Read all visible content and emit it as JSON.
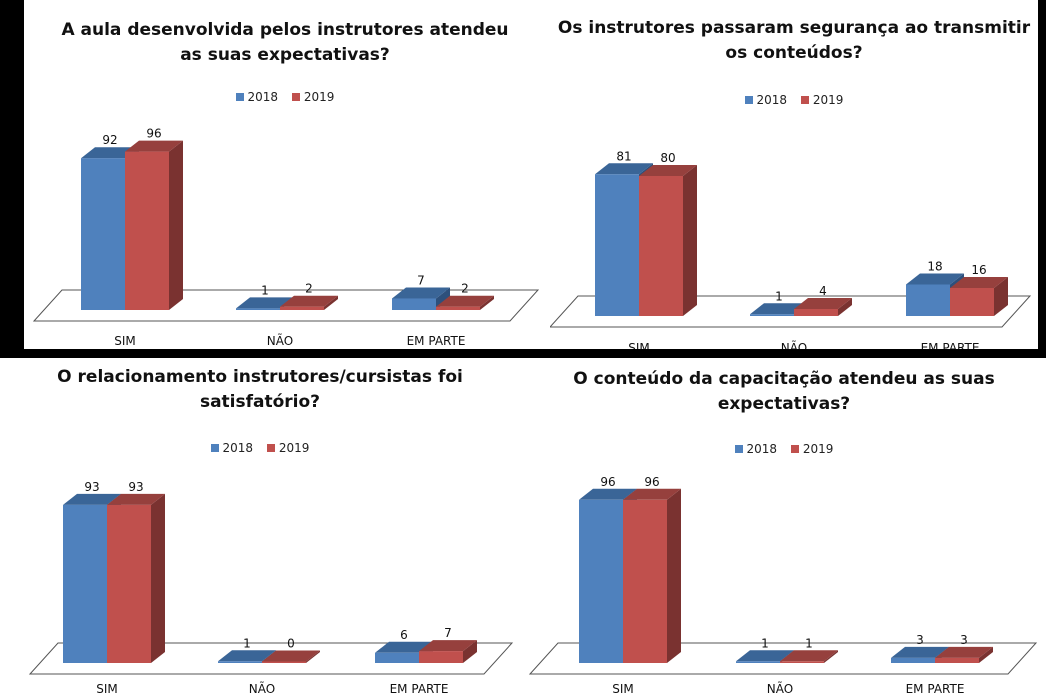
{
  "legend": {
    "series_a": "2018",
    "series_b": "2019"
  },
  "colors": {
    "s2018": {
      "front": "#4f81bd",
      "top": "#3a6597",
      "side": "#2d507c"
    },
    "s2019": {
      "front": "#c0504d",
      "top": "#96403d",
      "side": "#7a3230"
    },
    "floor_stroke": "#555555"
  },
  "chart_data": [
    {
      "type": "bar",
      "title": "A aula desenvolvida pelos instrutores atendeu\nas suas expectativas?",
      "categories": [
        "SIM",
        "NÃO",
        "EM PARTE"
      ],
      "series": [
        {
          "name": "2018",
          "values": [
            92,
            1,
            7
          ]
        },
        {
          "name": "2019",
          "values": [
            96,
            2,
            2
          ]
        }
      ],
      "ylim": [
        0,
        100
      ],
      "grid": false,
      "legend_position": "top"
    },
    {
      "type": "bar",
      "title": "Os instrutores passaram segurança ao transmitir\nos conteúdos?",
      "categories": [
        "SIM",
        "NÃO",
        "EM PARTE"
      ],
      "series": [
        {
          "name": "2018",
          "values": [
            81,
            1,
            18
          ]
        },
        {
          "name": "2019",
          "values": [
            80,
            4,
            16
          ]
        }
      ],
      "ylim": [
        0,
        100
      ],
      "grid": false,
      "legend_position": "top"
    },
    {
      "type": "bar",
      "title": "O relacionamento instrutores/cursistas foi\nsatisfatório?",
      "categories": [
        "SIM",
        "NÃO",
        "EM PARTE"
      ],
      "series": [
        {
          "name": "2018",
          "values": [
            93,
            1,
            6
          ]
        },
        {
          "name": "2019",
          "values": [
            93,
            0,
            7
          ]
        }
      ],
      "ylim": [
        0,
        100
      ],
      "grid": false,
      "legend_position": "top"
    },
    {
      "type": "bar",
      "title": "O conteúdo da capacitação atendeu as suas\nexpectativas?",
      "categories": [
        "SIM",
        "NÃO",
        "EM PARTE"
      ],
      "series": [
        {
          "name": "2018",
          "values": [
            96,
            1,
            3
          ]
        },
        {
          "name": "2019",
          "values": [
            96,
            1,
            3
          ]
        }
      ],
      "ylim": [
        0,
        100
      ],
      "grid": false,
      "legend_position": "top"
    }
  ]
}
